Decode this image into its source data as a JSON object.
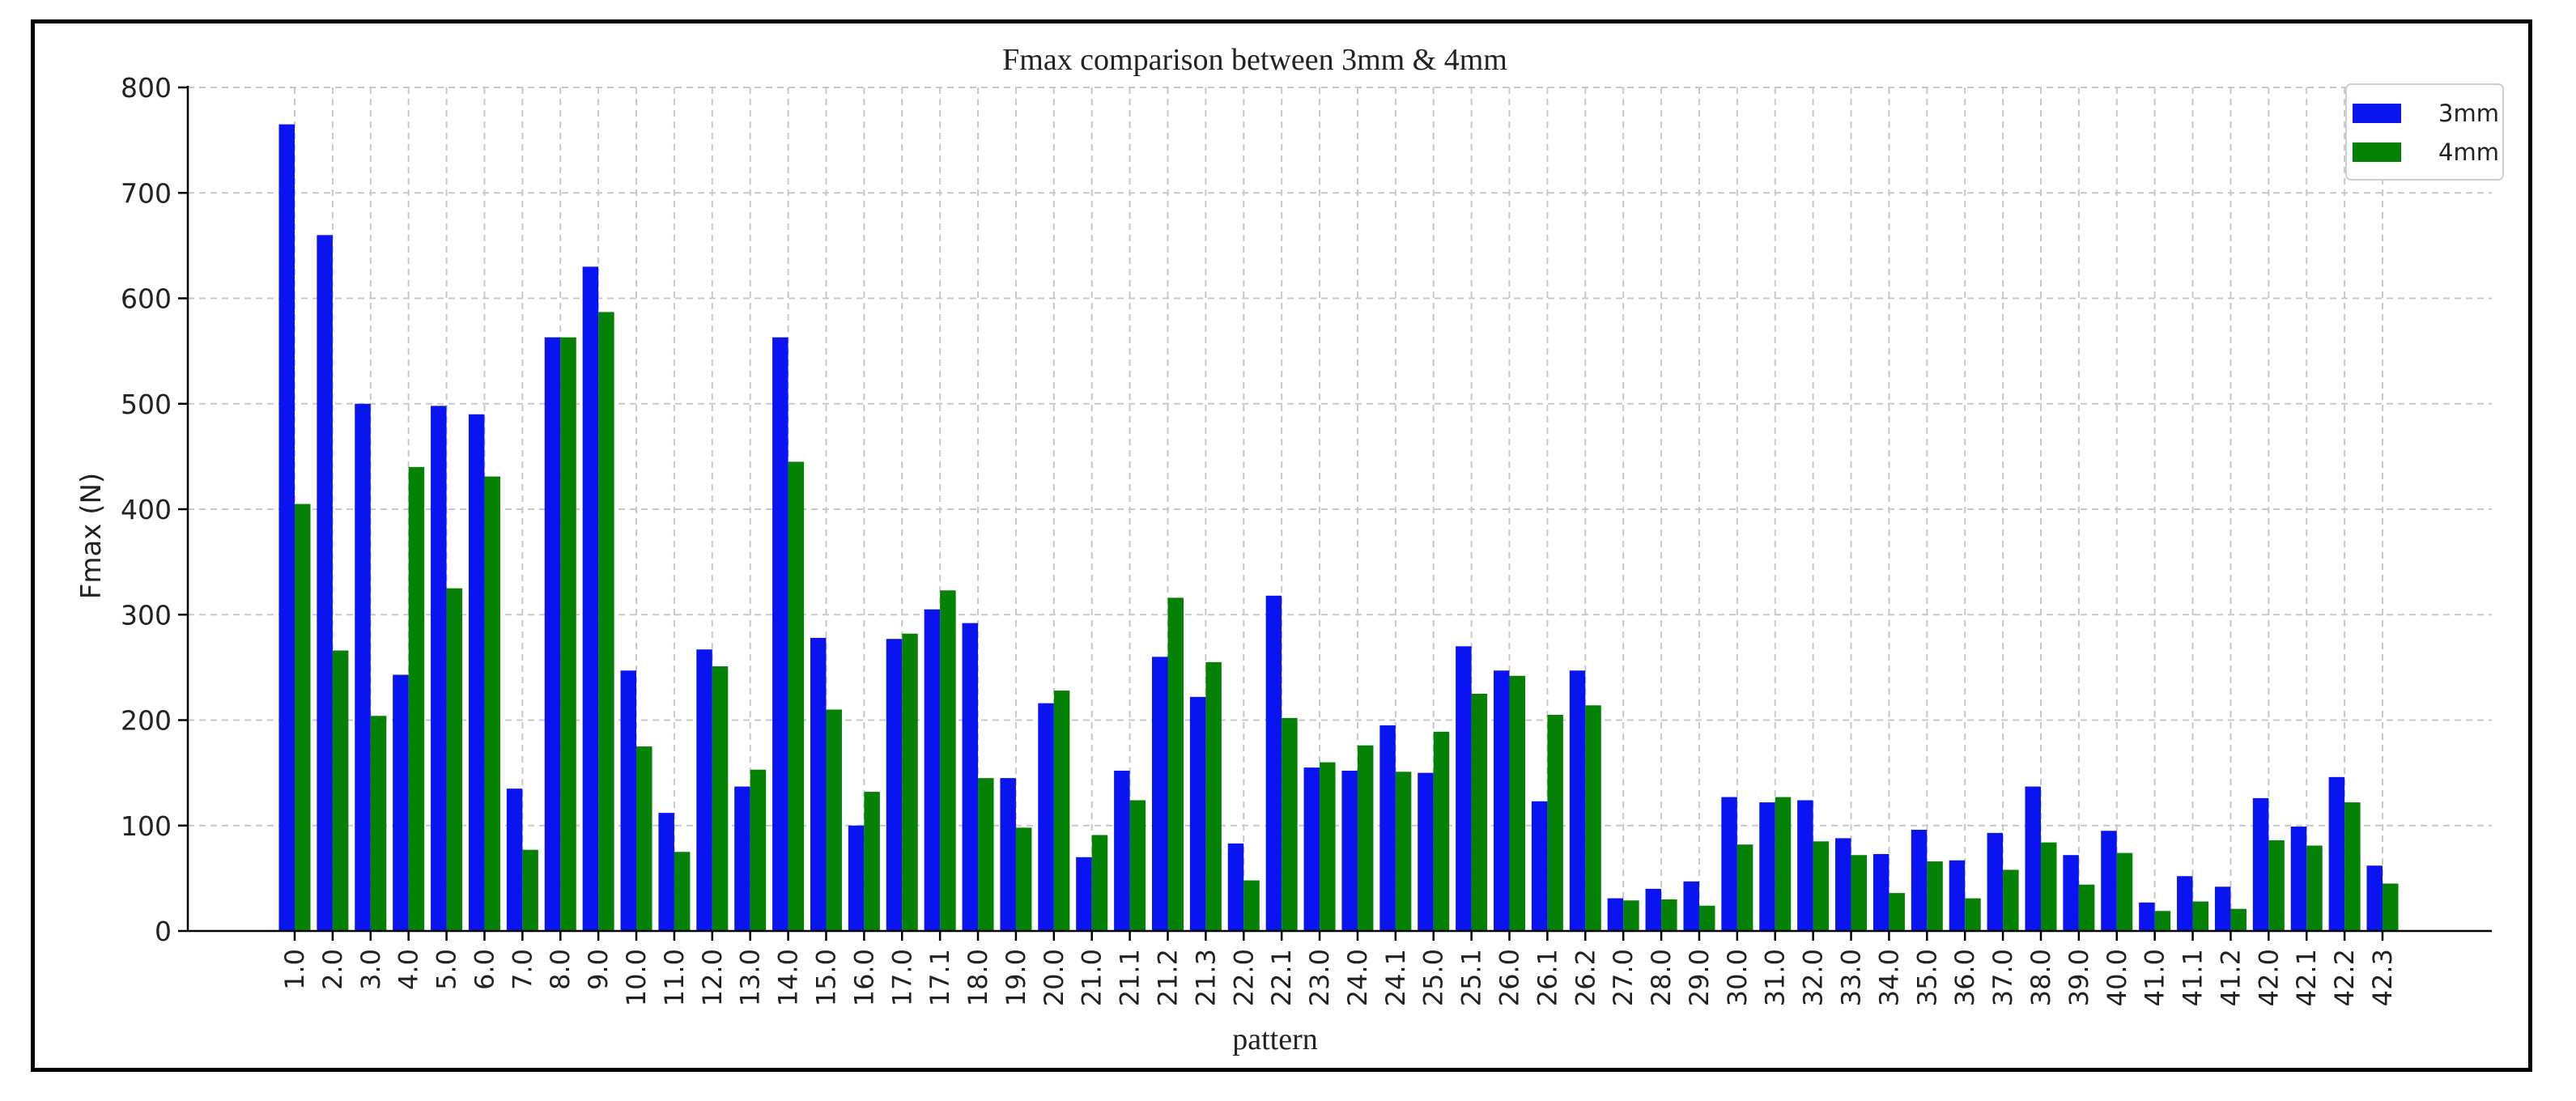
{
  "chart_data": {
    "type": "bar",
    "title": "Fmax comparison between 3mm & 4mm",
    "xlabel": "pattern",
    "ylabel": "Fmax (N)",
    "ylim": [
      0,
      800
    ],
    "yticks": [
      0,
      100,
      200,
      300,
      400,
      500,
      600,
      700,
      800
    ],
    "grid": true,
    "legend_position": "top-right",
    "categories": [
      "1.0",
      "2.0",
      "3.0",
      "4.0",
      "5.0",
      "6.0",
      "7.0",
      "8.0",
      "9.0",
      "10.0",
      "11.0",
      "12.0",
      "13.0",
      "14.0",
      "15.0",
      "16.0",
      "17.0",
      "17.1",
      "18.0",
      "19.0",
      "20.0",
      "21.0",
      "21.1",
      "21.2",
      "21.3",
      "22.0",
      "22.1",
      "23.0",
      "24.0",
      "24.1",
      "25.0",
      "25.1",
      "26.0",
      "26.1",
      "26.2",
      "27.0",
      "28.0",
      "29.0",
      "30.0",
      "31.0",
      "32.0",
      "33.0",
      "34.0",
      "35.0",
      "36.0",
      "37.0",
      "38.0",
      "39.0",
      "40.0",
      "41.0",
      "41.1",
      "41.2",
      "42.0",
      "42.1",
      "42.2",
      "42.3"
    ],
    "series": [
      {
        "name": "3mm",
        "color": "#0a14f0",
        "values": [
          765,
          660,
          500,
          243,
          498,
          490,
          135,
          563,
          630,
          247,
          112,
          267,
          137,
          563,
          278,
          100,
          277,
          305,
          292,
          145,
          216,
          70,
          152,
          260,
          222,
          83,
          318,
          155,
          152,
          195,
          150,
          270,
          247,
          123,
          247,
          31,
          40,
          47,
          127,
          122,
          124,
          88,
          73,
          96,
          67,
          93,
          137,
          72,
          95,
          27,
          52,
          42,
          126,
          99,
          146,
          62
        ]
      },
      {
        "name": "4mm",
        "color": "#058205",
        "values": [
          405,
          266,
          204,
          440,
          325,
          431,
          77,
          563,
          587,
          175,
          75,
          251,
          153,
          445,
          210,
          132,
          282,
          323,
          145,
          98,
          228,
          91,
          124,
          316,
          255,
          48,
          202,
          160,
          176,
          151,
          189,
          225,
          242,
          205,
          214,
          29,
          30,
          24,
          82,
          127,
          85,
          72,
          36,
          66,
          31,
          58,
          84,
          44,
          74,
          19,
          28,
          21,
          86,
          81,
          122,
          45
        ]
      }
    ]
  }
}
